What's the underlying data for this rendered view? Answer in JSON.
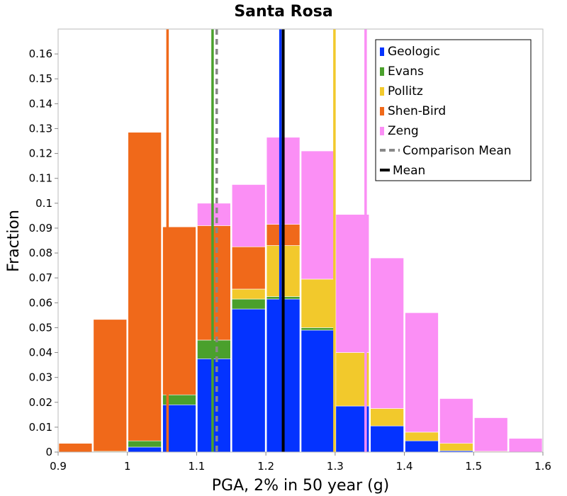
{
  "chart_data": {
    "type": "bar",
    "stacked": true,
    "title": "Santa Rosa",
    "xlabel": "PGA, 2% in 50 year (g)",
    "ylabel": "Fraction",
    "xlim": [
      0.9,
      1.6
    ],
    "ylim": [
      0,
      0.17
    ],
    "grid": false,
    "legend_position": "top-right",
    "x_ticks": [
      "0.9",
      "1",
      "1.1",
      "1.2",
      "1.3",
      "1.4",
      "1.5",
      "1.6"
    ],
    "y_ticks": [
      "0",
      "0.01",
      "0.02",
      "0.03",
      "0.04",
      "0.05",
      "0.06",
      "0.07",
      "0.08",
      "0.09",
      "0.1",
      "0.11",
      "0.12",
      "0.13",
      "0.14",
      "0.15",
      "0.16"
    ],
    "bin_width": 0.05,
    "bins": [
      0.925,
      0.975,
      1.025,
      1.075,
      1.125,
      1.175,
      1.225,
      1.275,
      1.325,
      1.375,
      1.425,
      1.475,
      1.525,
      1.575
    ],
    "series": [
      {
        "name": "Geologic",
        "color": "#0433ff",
        "values": [
          0,
          0,
          0.002,
          0.019,
          0.0375,
          0.0575,
          0.0615,
          0.049,
          0.0185,
          0.0105,
          0.0045,
          0.0005,
          0,
          0
        ]
      },
      {
        "name": "Evans",
        "color": "#4aa02c",
        "values": [
          0,
          0.0003,
          0.0025,
          0.004,
          0.0075,
          0.004,
          0.001,
          0.001,
          0,
          0,
          0,
          0,
          0,
          0
        ]
      },
      {
        "name": "Pollitz",
        "color": "#f2c92c",
        "values": [
          0,
          0,
          0,
          0,
          0,
          0.004,
          0.0205,
          0.0195,
          0.0215,
          0.007,
          0.0035,
          0.003,
          0.0003,
          0
        ]
      },
      {
        "name": "Shen-Bird",
        "color": "#f0691a",
        "values": [
          0.0035,
          0.053,
          0.124,
          0.0675,
          0.046,
          0.017,
          0.0085,
          0,
          0,
          0,
          0,
          0,
          0,
          0
        ]
      },
      {
        "name": "Zeng",
        "color": "#fb8ff5",
        "values": [
          0,
          0,
          0,
          0,
          0.009,
          0.025,
          0.035,
          0.0515,
          0.0555,
          0.0605,
          0.048,
          0.018,
          0.0135,
          0.0055
        ]
      }
    ],
    "vertical_lines": [
      {
        "series": "Shen-Bird",
        "x": 1.058,
        "color": "#f0691a",
        "style": "solid"
      },
      {
        "series": "Evans",
        "x": 1.123,
        "color": "#4aa02c",
        "style": "solid"
      },
      {
        "series": "Comparison Mean",
        "x": 1.129,
        "color": "#888888",
        "style": "dashed"
      },
      {
        "series": "Geologic",
        "x": 1.221,
        "color": "#0433ff",
        "style": "solid"
      },
      {
        "series": "Mean",
        "x": 1.225,
        "color": "#000000",
        "style": "solid"
      },
      {
        "series": "Pollitz",
        "x": 1.299,
        "color": "#f2c92c",
        "style": "solid"
      },
      {
        "series": "Zeng",
        "x": 1.344,
        "color": "#fb8ff5",
        "style": "solid"
      }
    ],
    "legend": [
      {
        "label": "Geologic",
        "color": "#0433ff",
        "kind": "box"
      },
      {
        "label": "Evans",
        "color": "#4aa02c",
        "kind": "box"
      },
      {
        "label": "Pollitz",
        "color": "#f2c92c",
        "kind": "box"
      },
      {
        "label": "Shen-Bird",
        "color": "#f0691a",
        "kind": "box"
      },
      {
        "label": "Zeng",
        "color": "#fb8ff5",
        "kind": "box"
      },
      {
        "label": "Comparison Mean",
        "color": "#888888",
        "kind": "dashed-line"
      },
      {
        "label": "Mean",
        "color": "#000000",
        "kind": "line"
      }
    ]
  }
}
